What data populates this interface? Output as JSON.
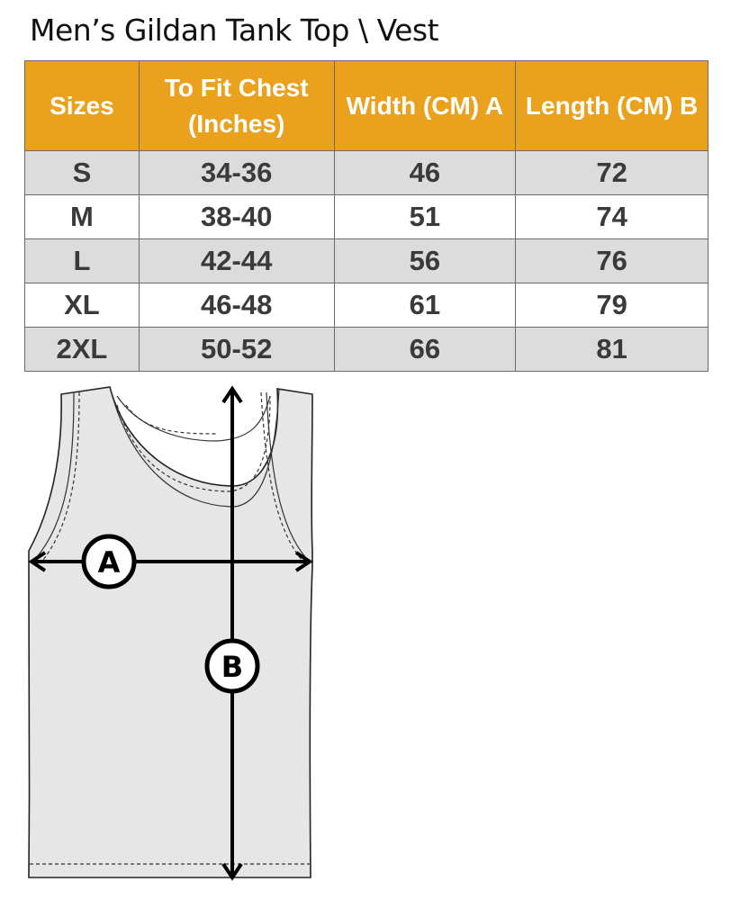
{
  "title": "Men’s Gildan Tank Top \\ Vest",
  "table": {
    "headers": [
      "Sizes",
      "To Fit Chest (Inches)",
      "Width (CM) A",
      "Length  (CM) B"
    ],
    "rows": [
      [
        "S",
        "34-36",
        "46",
        "72"
      ],
      [
        "M",
        "38-40",
        "51",
        "74"
      ],
      [
        "L",
        "42-44",
        "56",
        "76"
      ],
      [
        "XL",
        "46-48",
        "61",
        "79"
      ],
      [
        "2XL",
        "50-52",
        "66",
        "81"
      ]
    ]
  },
  "diagram": {
    "label_a": "A",
    "label_b": "B"
  },
  "colors": {
    "header": "#E9A11E",
    "row_alt": "#DCDCDC",
    "text": "#3a3a3a"
  }
}
